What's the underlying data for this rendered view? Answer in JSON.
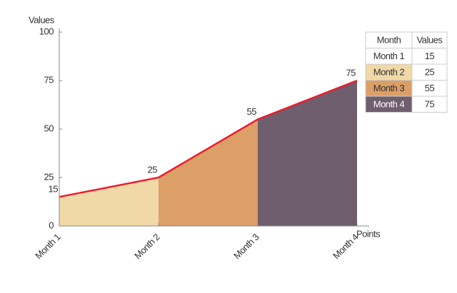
{
  "chart_data": {
    "type": "area",
    "y_label": "Values",
    "x_label": "Points",
    "categories": [
      "Month 1",
      "Month 2",
      "Month 3",
      "Month 4"
    ],
    "values": [
      15,
      25,
      55,
      75
    ],
    "colors": [
      "#ffffff",
      "#f0d9a6",
      "#dc9f68",
      "#6f5e6e"
    ],
    "line_color": "#ee1c2e",
    "ylim": [
      0,
      100
    ],
    "yticks": [
      0,
      25,
      50,
      75,
      100
    ],
    "table_columns": [
      "Month",
      "Values"
    ]
  }
}
